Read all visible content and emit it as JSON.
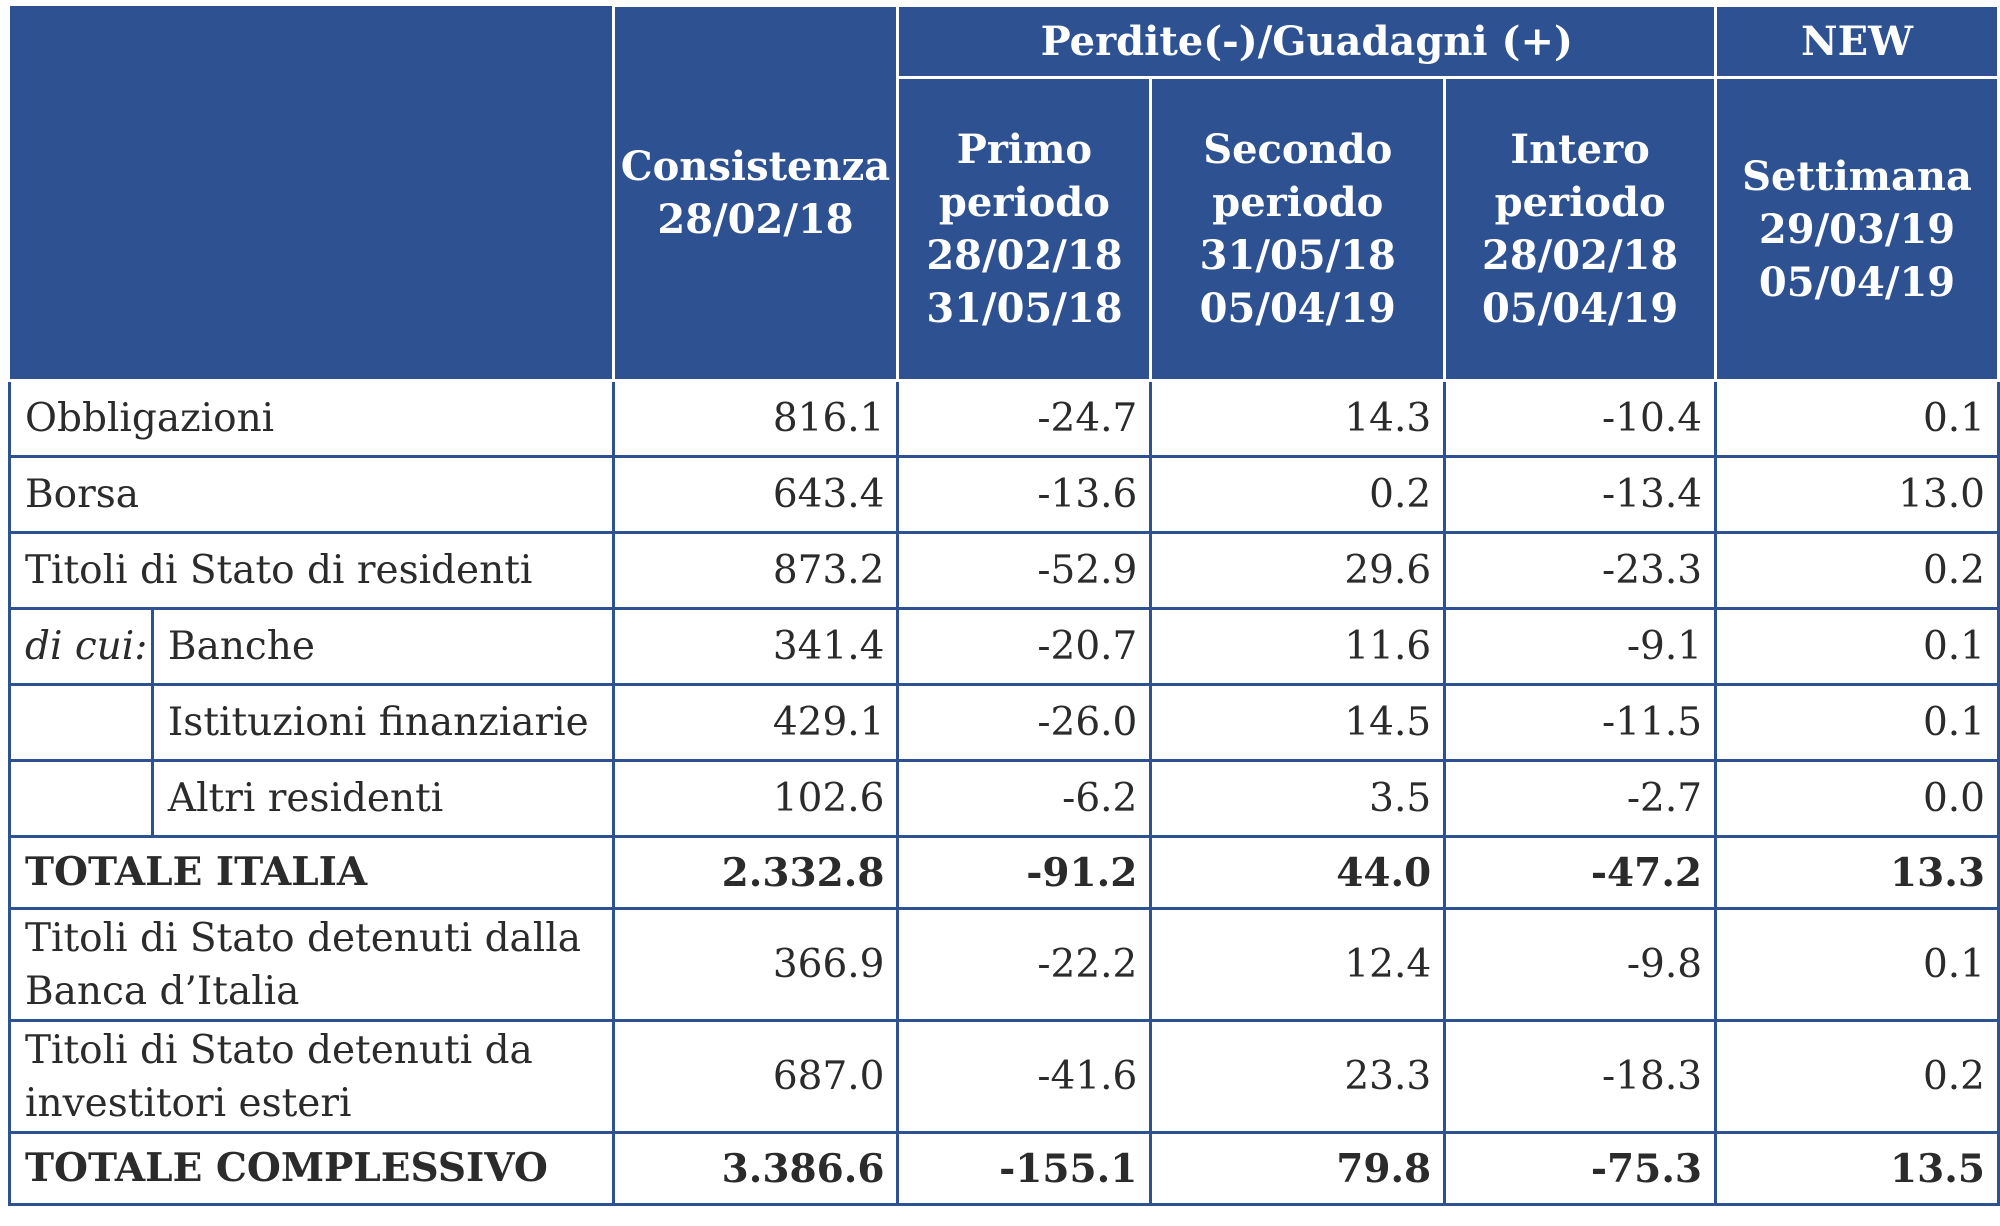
{
  "header": {
    "group_title": "Perdite(-)/Guadagni (+)",
    "new_title": "NEW",
    "columns": [
      {
        "key": "consistenza",
        "lines": [
          "Consistenza",
          "28/02/18"
        ]
      },
      {
        "key": "primo",
        "lines": [
          "Primo",
          "periodo",
          "28/02/18",
          "31/05/18"
        ]
      },
      {
        "key": "secondo",
        "lines": [
          "Secondo",
          "periodo",
          "31/05/18",
          "05/04/19"
        ]
      },
      {
        "key": "intero",
        "lines": [
          "Intero",
          "periodo",
          "28/02/18",
          "05/04/19"
        ]
      },
      {
        "key": "settimana",
        "lines": [
          "Settimana",
          "29/03/19",
          "05/04/19"
        ]
      }
    ]
  },
  "rows": [
    {
      "label": "Obbligazioni",
      "values": [
        "816.1",
        "-24.7",
        "14.3",
        "-10.4",
        "0.1"
      ]
    },
    {
      "label": "Borsa",
      "values": [
        "643.4",
        "-13.6",
        "0.2",
        "-13.4",
        "13.0"
      ]
    },
    {
      "label": "Titoli di Stato di residenti",
      "values": [
        "873.2",
        "-52.9",
        "29.6",
        "-23.3",
        "0.2"
      ]
    },
    {
      "prefix": "di cui:",
      "label": "Banche",
      "values": [
        "341.4",
        "-20.7",
        "11.6",
        "-9.1",
        "0.1"
      ]
    },
    {
      "label": "Istituzioni finanziarie",
      "values": [
        "429.1",
        "-26.0",
        "14.5",
        "-11.5",
        "0.1"
      ]
    },
    {
      "label": "Altri residenti",
      "values": [
        "102.6",
        "-6.2",
        "3.5",
        "-2.7",
        "0.0"
      ]
    },
    {
      "label": "TOTALE ITALIA",
      "values": [
        "2.332.8",
        "-91.2",
        "44.0",
        "-47.2",
        "13.3"
      ]
    },
    {
      "label_lines": [
        "Titoli di Stato detenuti dalla",
        "Banca d’Italia"
      ],
      "values": [
        "366.9",
        "-22.2",
        "12.4",
        "-9.8",
        "0.1"
      ]
    },
    {
      "label_lines": [
        "Titoli di Stato detenuti da",
        "investitori esteri"
      ],
      "values": [
        "687.0",
        "-41.6",
        "23.3",
        "-18.3",
        "0.2"
      ]
    },
    {
      "label": "TOTALE COMPLESSIVO",
      "values": [
        "3.386.6",
        "-155.1",
        "79.8",
        "-75.3",
        "13.5"
      ]
    }
  ],
  "colors": {
    "header_bg": "#2e5291",
    "header_text": "#ffffff",
    "border": "#2e5291",
    "text": "#2b2b2b"
  }
}
